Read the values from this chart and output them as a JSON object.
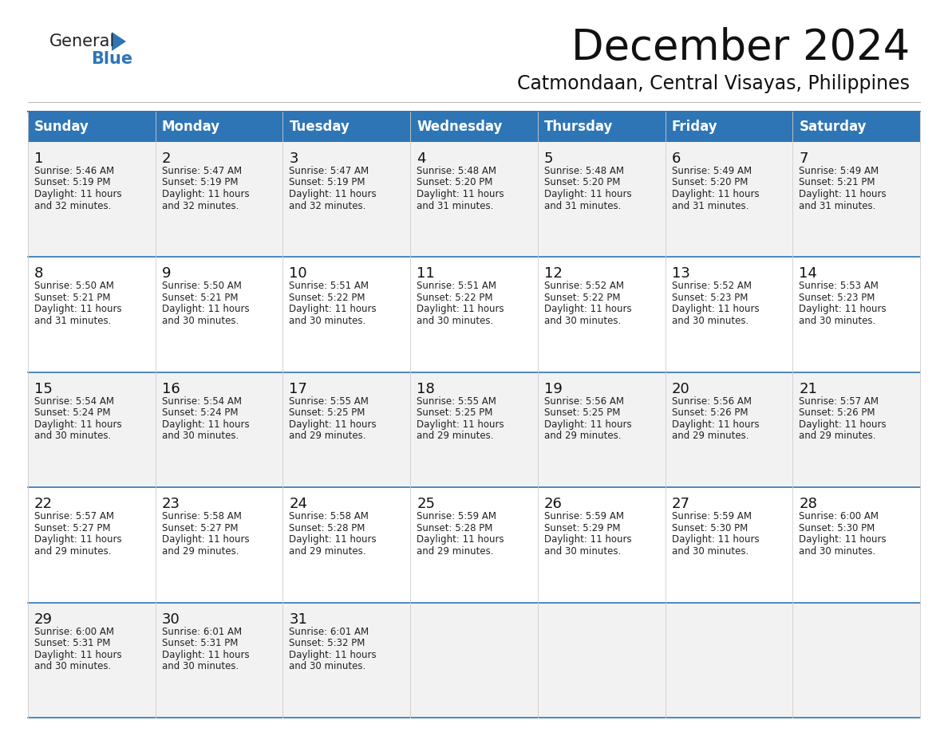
{
  "title": "December 2024",
  "subtitle": "Catmondaan, Central Visayas, Philippines",
  "header_color": "#2E75B6",
  "header_text_color": "#FFFFFF",
  "background_color": "#FFFFFF",
  "cell_bg_color": "#FFFFFF",
  "alt_cell_bg_color": "#F2F2F2",
  "day_names": [
    "Sunday",
    "Monday",
    "Tuesday",
    "Wednesday",
    "Thursday",
    "Friday",
    "Saturday"
  ],
  "title_fontsize": 38,
  "subtitle_fontsize": 17,
  "header_fontsize": 12,
  "day_num_fontsize": 12,
  "cell_fontsize": 8.5,
  "logo_general_fontsize": 15,
  "logo_blue_fontsize": 15,
  "calendar": [
    [
      {
        "day": 1,
        "sunrise": "5:46 AM",
        "sunset": "5:19 PM",
        "daylight": "11 hours and 32 minutes."
      },
      {
        "day": 2,
        "sunrise": "5:47 AM",
        "sunset": "5:19 PM",
        "daylight": "11 hours and 32 minutes."
      },
      {
        "day": 3,
        "sunrise": "5:47 AM",
        "sunset": "5:19 PM",
        "daylight": "11 hours and 32 minutes."
      },
      {
        "day": 4,
        "sunrise": "5:48 AM",
        "sunset": "5:20 PM",
        "daylight": "11 hours and 31 minutes."
      },
      {
        "day": 5,
        "sunrise": "5:48 AM",
        "sunset": "5:20 PM",
        "daylight": "11 hours and 31 minutes."
      },
      {
        "day": 6,
        "sunrise": "5:49 AM",
        "sunset": "5:20 PM",
        "daylight": "11 hours and 31 minutes."
      },
      {
        "day": 7,
        "sunrise": "5:49 AM",
        "sunset": "5:21 PM",
        "daylight": "11 hours and 31 minutes."
      }
    ],
    [
      {
        "day": 8,
        "sunrise": "5:50 AM",
        "sunset": "5:21 PM",
        "daylight": "11 hours and 31 minutes."
      },
      {
        "day": 9,
        "sunrise": "5:50 AM",
        "sunset": "5:21 PM",
        "daylight": "11 hours and 30 minutes."
      },
      {
        "day": 10,
        "sunrise": "5:51 AM",
        "sunset": "5:22 PM",
        "daylight": "11 hours and 30 minutes."
      },
      {
        "day": 11,
        "sunrise": "5:51 AM",
        "sunset": "5:22 PM",
        "daylight": "11 hours and 30 minutes."
      },
      {
        "day": 12,
        "sunrise": "5:52 AM",
        "sunset": "5:22 PM",
        "daylight": "11 hours and 30 minutes."
      },
      {
        "day": 13,
        "sunrise": "5:52 AM",
        "sunset": "5:23 PM",
        "daylight": "11 hours and 30 minutes."
      },
      {
        "day": 14,
        "sunrise": "5:53 AM",
        "sunset": "5:23 PM",
        "daylight": "11 hours and 30 minutes."
      }
    ],
    [
      {
        "day": 15,
        "sunrise": "5:54 AM",
        "sunset": "5:24 PM",
        "daylight": "11 hours and 30 minutes."
      },
      {
        "day": 16,
        "sunrise": "5:54 AM",
        "sunset": "5:24 PM",
        "daylight": "11 hours and 30 minutes."
      },
      {
        "day": 17,
        "sunrise": "5:55 AM",
        "sunset": "5:25 PM",
        "daylight": "11 hours and 29 minutes."
      },
      {
        "day": 18,
        "sunrise": "5:55 AM",
        "sunset": "5:25 PM",
        "daylight": "11 hours and 29 minutes."
      },
      {
        "day": 19,
        "sunrise": "5:56 AM",
        "sunset": "5:25 PM",
        "daylight": "11 hours and 29 minutes."
      },
      {
        "day": 20,
        "sunrise": "5:56 AM",
        "sunset": "5:26 PM",
        "daylight": "11 hours and 29 minutes."
      },
      {
        "day": 21,
        "sunrise": "5:57 AM",
        "sunset": "5:26 PM",
        "daylight": "11 hours and 29 minutes."
      }
    ],
    [
      {
        "day": 22,
        "sunrise": "5:57 AM",
        "sunset": "5:27 PM",
        "daylight": "11 hours and 29 minutes."
      },
      {
        "day": 23,
        "sunrise": "5:58 AM",
        "sunset": "5:27 PM",
        "daylight": "11 hours and 29 minutes."
      },
      {
        "day": 24,
        "sunrise": "5:58 AM",
        "sunset": "5:28 PM",
        "daylight": "11 hours and 29 minutes."
      },
      {
        "day": 25,
        "sunrise": "5:59 AM",
        "sunset": "5:28 PM",
        "daylight": "11 hours and 29 minutes."
      },
      {
        "day": 26,
        "sunrise": "5:59 AM",
        "sunset": "5:29 PM",
        "daylight": "11 hours and 30 minutes."
      },
      {
        "day": 27,
        "sunrise": "5:59 AM",
        "sunset": "5:30 PM",
        "daylight": "11 hours and 30 minutes."
      },
      {
        "day": 28,
        "sunrise": "6:00 AM",
        "sunset": "5:30 PM",
        "daylight": "11 hours and 30 minutes."
      }
    ],
    [
      {
        "day": 29,
        "sunrise": "6:00 AM",
        "sunset": "5:31 PM",
        "daylight": "11 hours and 30 minutes."
      },
      {
        "day": 30,
        "sunrise": "6:01 AM",
        "sunset": "5:31 PM",
        "daylight": "11 hours and 30 minutes."
      },
      {
        "day": 31,
        "sunrise": "6:01 AM",
        "sunset": "5:32 PM",
        "daylight": "11 hours and 30 minutes."
      },
      null,
      null,
      null,
      null
    ]
  ]
}
